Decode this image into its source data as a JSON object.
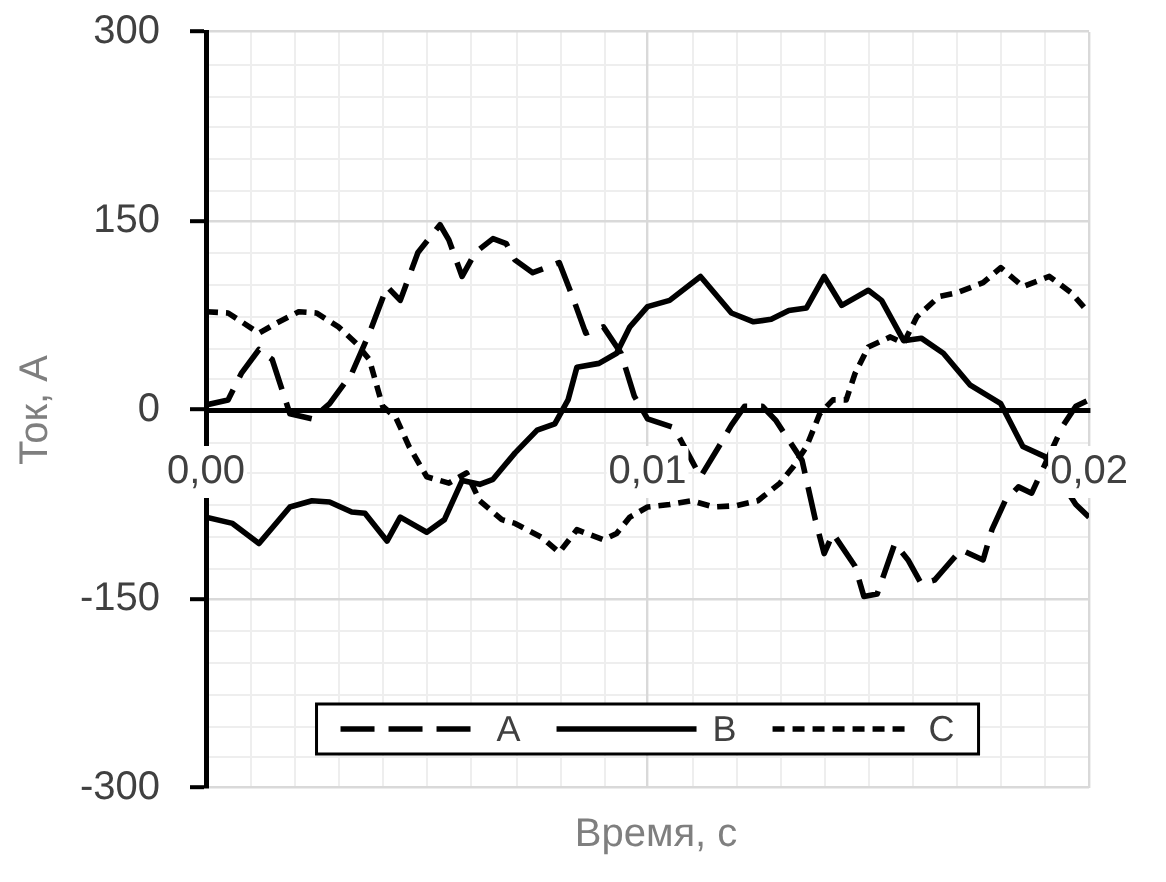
{
  "chart_data": {
    "type": "line",
    "xlabel": "Время, с",
    "ylabel": "Ток, А",
    "xlim": [
      0,
      0.02
    ],
    "xticks": [
      {
        "value": 0,
        "label": "0,00"
      },
      {
        "value": 0.01,
        "label": "0,01"
      },
      {
        "value": 0.02,
        "label": "0,02"
      }
    ],
    "ylim": [
      -300,
      300
    ],
    "yticks": [
      -300,
      -150,
      0,
      150,
      300
    ],
    "grid": true,
    "legend": "bottom",
    "marker": "none",
    "series": [
      {
        "name": "A",
        "color": "#000000",
        "line_style": "dashed",
        "x": [
          0,
          0.0005,
          0.0008,
          0.0012,
          0.0015,
          0.0019,
          0.0024,
          0.0028,
          0.0033,
          0.0037,
          0.0041,
          0.0044,
          0.0048,
          0.0053,
          0.0055,
          0.0058,
          0.0061,
          0.0065,
          0.0068,
          0.007,
          0.0074,
          0.008,
          0.0083,
          0.0086,
          0.009,
          0.0094,
          0.0097,
          0.01,
          0.0106,
          0.011,
          0.0112,
          0.0116,
          0.0119,
          0.0122,
          0.0126,
          0.0129,
          0.0135,
          0.0138,
          0.014,
          0.0141,
          0.0142,
          0.0147,
          0.0149,
          0.0152,
          0.0156,
          0.0159,
          0.0162,
          0.0165,
          0.0167,
          0.0171,
          0.0176,
          0.0178,
          0.0181,
          0.0184,
          0.0187,
          0.0194,
          0.0197,
          0.02
        ],
        "values": [
          4,
          8,
          29,
          48,
          40,
          -3,
          -7,
          5,
          29,
          61,
          98,
          87,
          125,
          147,
          135,
          106,
          125,
          136,
          132,
          119,
          109,
          117,
          90,
          61,
          66,
          45,
          11,
          -7,
          -14,
          -40,
          -53,
          -30,
          -12,
          3,
          3,
          -8,
          -40,
          -87,
          -114,
          -106,
          -98,
          -124,
          -148,
          -146,
          -106,
          -119,
          -138,
          -135,
          -127,
          -111,
          -119,
          -95,
          -72,
          -61,
          -66,
          -13,
          3,
          8
        ]
      },
      {
        "name": "B",
        "color": "#000000",
        "line_style": "solid",
        "x": [
          0,
          0.0006,
          0.0012,
          0.0019,
          0.0024,
          0.0028,
          0.0033,
          0.0036,
          0.0041,
          0.0044,
          0.005,
          0.0054,
          0.0058,
          0.0062,
          0.0065,
          0.007,
          0.0075,
          0.0079,
          0.0082,
          0.0084,
          0.0089,
          0.0093,
          0.0096,
          0.01,
          0.0105,
          0.0112,
          0.0119,
          0.0124,
          0.0128,
          0.0132,
          0.0136,
          0.014,
          0.0144,
          0.015,
          0.0153,
          0.0158,
          0.0162,
          0.0167,
          0.0173,
          0.018,
          0.0185,
          0.019,
          0.0197,
          0.02
        ],
        "values": [
          -85,
          -90,
          -106,
          -77,
          -72,
          -73,
          -81,
          -82,
          -104,
          -85,
          -97,
          -87,
          -56,
          -59,
          -55,
          -34,
          -16,
          -11,
          8,
          34,
          37,
          45,
          66,
          82,
          87,
          106,
          77,
          70,
          72,
          79,
          81,
          106,
          83,
          95,
          87,
          55,
          57,
          45,
          20,
          5,
          -29,
          -37,
          -75,
          -85
        ]
      },
      {
        "name": "C",
        "color": "#000000",
        "line_style": "dotted",
        "x": [
          0,
          0.0005,
          0.0012,
          0.0016,
          0.0021,
          0.0025,
          0.003,
          0.0034,
          0.0037,
          0.004,
          0.0043,
          0.0046,
          0.005,
          0.0055,
          0.0059,
          0.0062,
          0.0067,
          0.007,
          0.0076,
          0.008,
          0.0084,
          0.009,
          0.0093,
          0.0096,
          0.01,
          0.0105,
          0.011,
          0.0115,
          0.012,
          0.0125,
          0.013,
          0.0133,
          0.0136,
          0.0139,
          0.0142,
          0.0145,
          0.0147,
          0.015,
          0.0155,
          0.0158,
          0.0161,
          0.0166,
          0.017,
          0.0176,
          0.018,
          0.0185,
          0.0191,
          0.0196,
          0.02
        ],
        "values": [
          78,
          77,
          61,
          69,
          78,
          77,
          66,
          53,
          40,
          3,
          -6,
          -29,
          -53,
          -58,
          -50,
          -72,
          -87,
          -90,
          -101,
          -113,
          -95,
          -103,
          -98,
          -85,
          -77,
          -75,
          -72,
          -77,
          -76,
          -72,
          -58,
          -45,
          -29,
          -3,
          8,
          8,
          29,
          50,
          58,
          53,
          74,
          90,
          93,
          101,
          113,
          98,
          106,
          93,
          77
        ]
      }
    ]
  }
}
